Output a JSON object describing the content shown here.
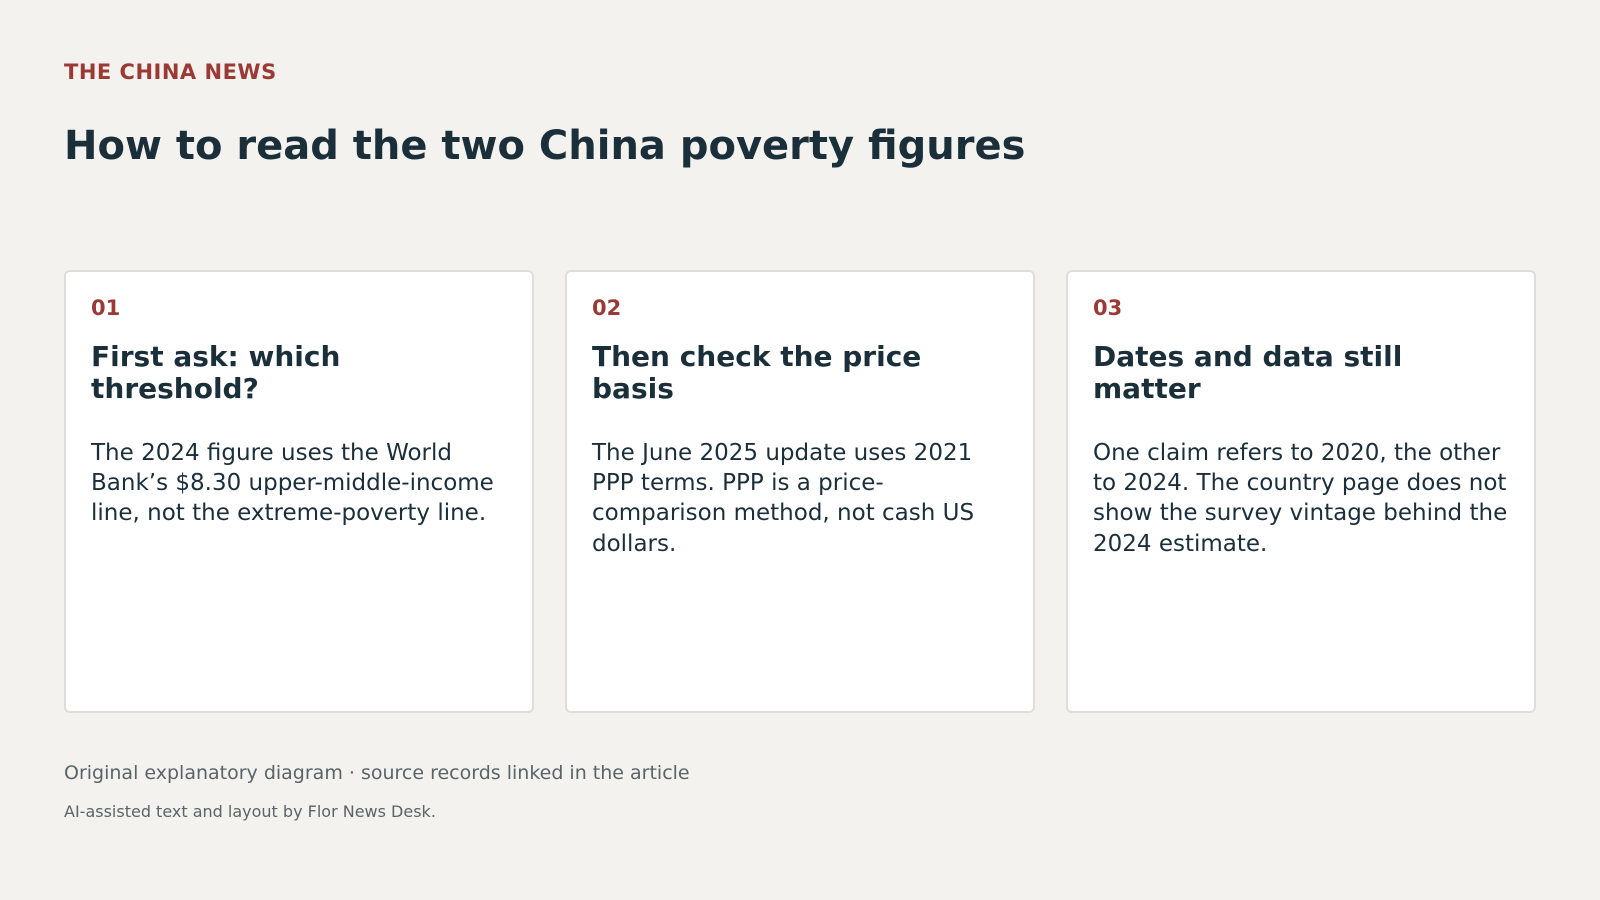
{
  "header": {
    "kicker": "THE CHINA NEWS",
    "title": "How to read the two China poverty figures"
  },
  "cards": [
    {
      "number": "01",
      "title": "First ask: which threshold?",
      "body": "The 2024 figure uses the World Bank’s $8.30 upper-middle-income line, not the extreme-poverty line."
    },
    {
      "number": "02",
      "title": "Then check the price basis",
      "body": "The June 2025 update uses 2021 PPP terms. PPP is a price-comparison method, not cash US dollars."
    },
    {
      "number": "03",
      "title": "Dates and data still matter",
      "body": "One claim refers to 2020, the other to 2024. The country page does not show the survey vintage behind the 2024 estimate."
    }
  ],
  "footer": {
    "note": "Original explanatory diagram · source records linked in the article",
    "credit": "AI-assisted text and layout by Flor News Desk."
  },
  "colors": {
    "accent": "#9b3a35",
    "text": "#1b2f3a",
    "background": "#f3f2ee",
    "card": "#ffffff",
    "muted": "#5a6468"
  }
}
